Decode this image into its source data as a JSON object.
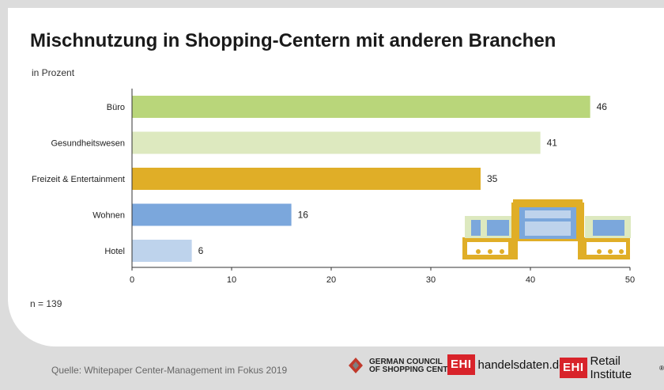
{
  "title": "Mischnutzung in Shopping-Centern mit anderen Branchen",
  "subtitle": "in Prozent",
  "note": "n = 139",
  "source": "Quelle: Whitepaper Center-Management im Fokus 2019",
  "logos": {
    "gcsc_line1": "GERMAN COUNCIL",
    "gcsc_line2": "OF SHOPPING CENTERS",
    "ehi_label": "EHI",
    "handelsdaten": "handelsdaten.de",
    "retail_institute": "Retail Institute",
    "registered": "®"
  },
  "chart_data": {
    "type": "bar",
    "orientation": "horizontal",
    "categories": [
      "Büro",
      "Gesundheitswesen",
      "Freizeit & Entertainment",
      "Wohnen",
      "Hotel"
    ],
    "values": [
      46,
      41,
      35,
      16,
      6
    ],
    "colors": [
      "#b9d67a",
      "#dde9bf",
      "#e0ae27",
      "#7ba7dc",
      "#bed3ec"
    ],
    "xlim": [
      0,
      50
    ],
    "xticks": [
      0,
      10,
      20,
      30,
      40,
      50
    ],
    "grid": false
  }
}
